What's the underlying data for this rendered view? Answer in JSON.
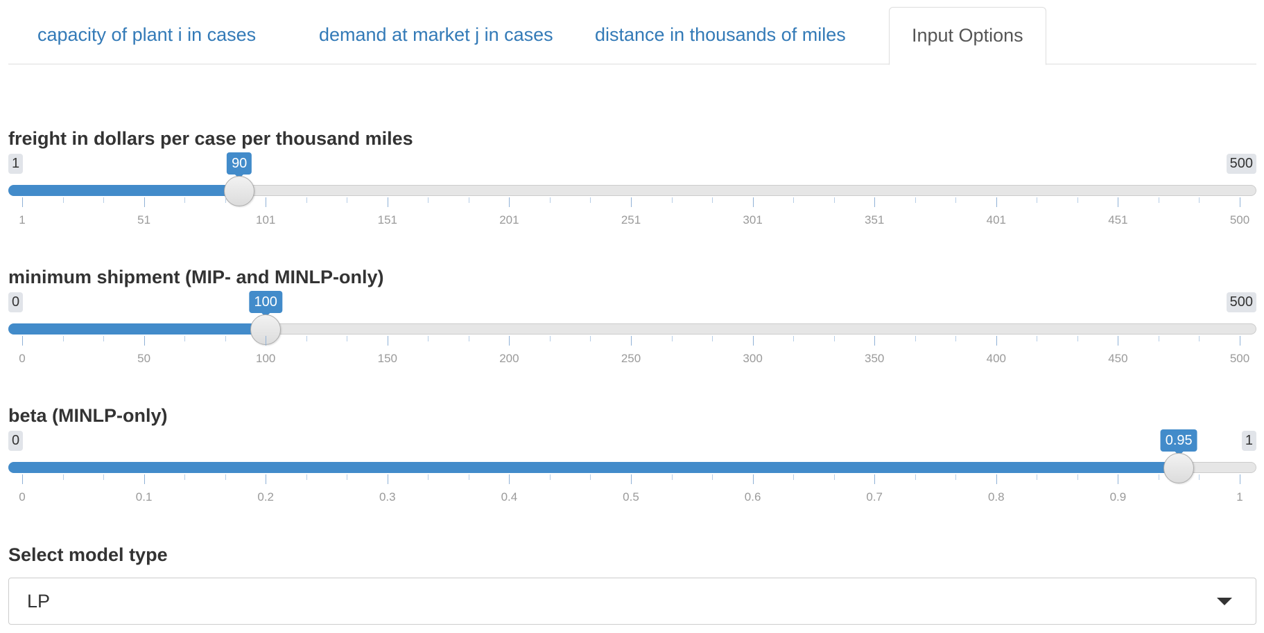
{
  "tabs": [
    {
      "label": "capacity of plant i in cases",
      "active": false
    },
    {
      "label": "demand at market j in cases",
      "active": false
    },
    {
      "label": "distance in thousands of miles",
      "active": false
    },
    {
      "label": "Input Options",
      "active": true
    }
  ],
  "sliders": [
    {
      "label": "freight in dollars per case per thousand miles",
      "min": 1,
      "max": 500,
      "value": 90,
      "min_label": "1",
      "max_label": "500",
      "value_label": "90",
      "ticks": [
        "1",
        "51",
        "101",
        "151",
        "201",
        "251",
        "301",
        "351",
        "401",
        "451",
        "500"
      ]
    },
    {
      "label": "minimum shipment (MIP- and MINLP-only)",
      "min": 0,
      "max": 500,
      "value": 100,
      "min_label": "0",
      "max_label": "500",
      "value_label": "100",
      "ticks": [
        "0",
        "50",
        "100",
        "150",
        "200",
        "250",
        "300",
        "350",
        "400",
        "450",
        "500"
      ]
    },
    {
      "label": "beta (MINLP-only)",
      "min": 0,
      "max": 1,
      "value": 0.95,
      "min_label": "0",
      "max_label": "1",
      "value_label": "0.95",
      "ticks": [
        "0",
        "0.1",
        "0.2",
        "0.3",
        "0.4",
        "0.5",
        "0.6",
        "0.7",
        "0.8",
        "0.9",
        "1"
      ]
    }
  ],
  "model_select": {
    "label": "Select model type",
    "selected": "LP"
  },
  "colors": {
    "accent": "#428bca",
    "link": "#337ab7",
    "track": "#e6e6e6"
  },
  "icons": {
    "select_caret": "caret-down-icon"
  }
}
